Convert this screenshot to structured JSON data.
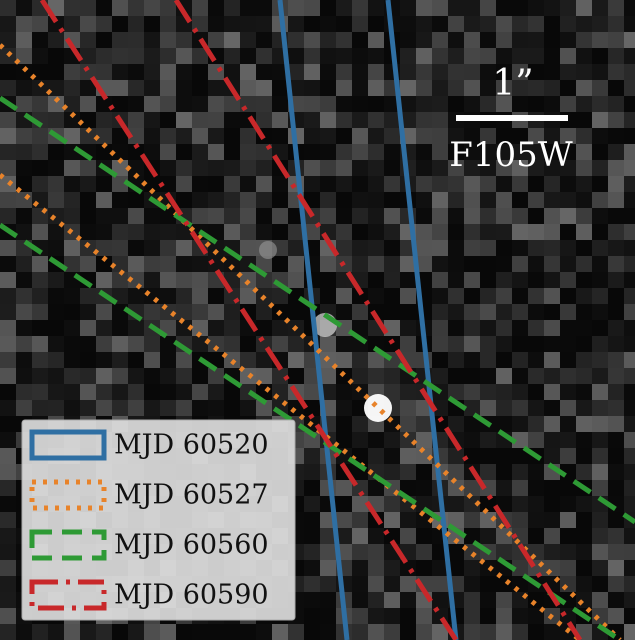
{
  "scale_bar": {
    "label": "1”"
  },
  "filter": "F105W",
  "legend": [
    {
      "label": "MJD 60520"
    },
    {
      "label": "MJD 60527"
    },
    {
      "label": "MJD 60560"
    },
    {
      "label": "MJD 60590"
    }
  ]
}
